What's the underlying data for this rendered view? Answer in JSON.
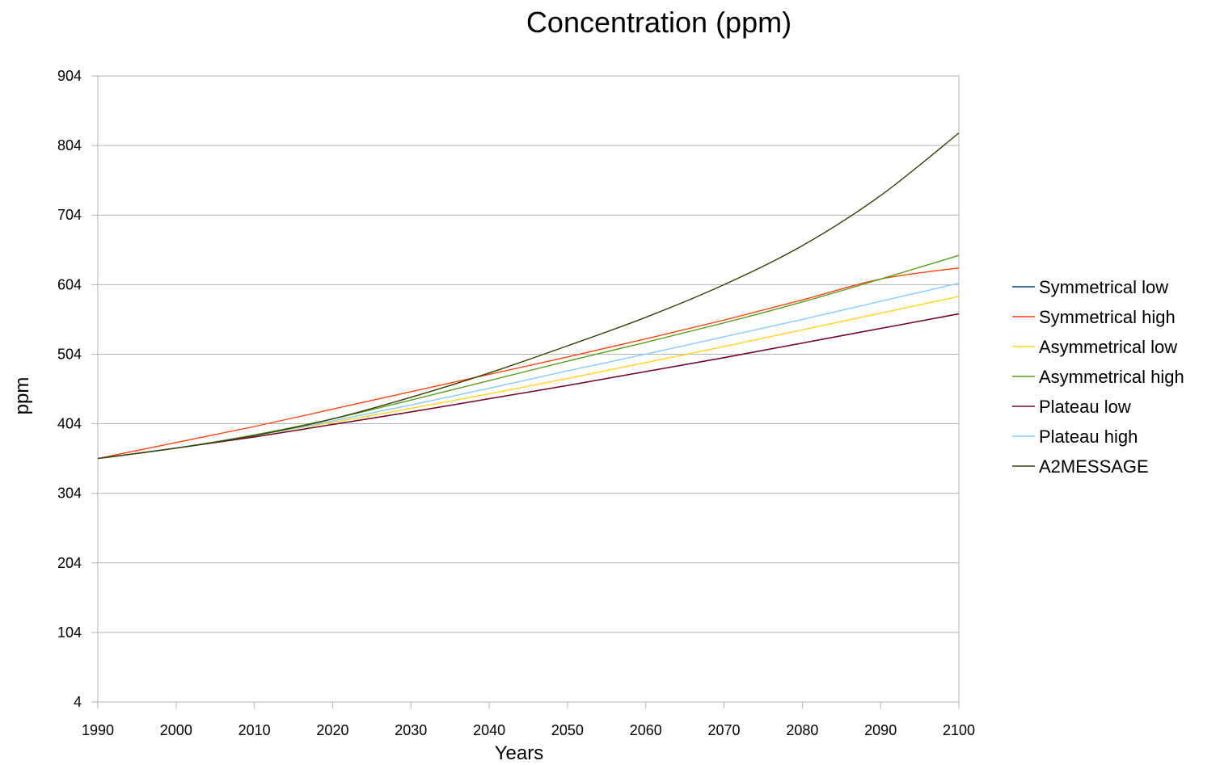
{
  "chart_data": {
    "type": "line",
    "title": "Concentration (ppm)",
    "xlabel": "Years",
    "ylabel": "ppm",
    "x": [
      1990,
      2000,
      2010,
      2020,
      2030,
      2040,
      2050,
      2060,
      2070,
      2080,
      2090,
      2100
    ],
    "xlim": [
      1990,
      2100
    ],
    "ylim": [
      4,
      904
    ],
    "xticks": [
      "1990",
      "2000",
      "2010",
      "2020",
      "2030",
      "2040",
      "2050",
      "2060",
      "2070",
      "2080",
      "2090",
      "2100"
    ],
    "yticks": [
      "4",
      "104",
      "204",
      "304",
      "404",
      "504",
      "604",
      "704",
      "804",
      "904"
    ],
    "grid": true,
    "legend": "right",
    "series": [
      {
        "name": "Symmetrical low",
        "color": "#004586",
        "values": [
          354,
          369,
          385,
          403,
          421,
          440,
          459,
          479,
          499,
          520,
          541,
          562
        ]
      },
      {
        "name": "Symmetrical high",
        "color": "#ff420e",
        "values": [
          354,
          377,
          400,
          425,
          450,
          475,
          500,
          526,
          553,
          582,
          612,
          628
        ]
      },
      {
        "name": "Asymmetrical low",
        "color": "#ffd320",
        "values": [
          354,
          369,
          387,
          406,
          426,
          447,
          469,
          492,
          515,
          539,
          563,
          587
        ]
      },
      {
        "name": "Asymmetrical high",
        "color": "#579d1c",
        "values": [
          354,
          369,
          388,
          411,
          438,
          466,
          494,
          521,
          549,
          579,
          612,
          646
        ]
      },
      {
        "name": "Plateau low",
        "color": "#7e0021",
        "values": [
          354,
          369,
          385,
          403,
          421,
          440,
          459,
          479,
          499,
          520,
          541,
          562
        ]
      },
      {
        "name": "Plateau high",
        "color": "#83caff",
        "values": [
          354,
          369,
          387,
          408,
          431,
          455,
          480,
          504,
          529,
          554,
          580,
          606
        ]
      },
      {
        "name": "A2MESSAGE",
        "color": "#314004",
        "values": [
          354,
          369,
          387,
          411,
          442,
          477,
          516,
          557,
          604,
          660,
          732,
          822
        ]
      }
    ]
  }
}
